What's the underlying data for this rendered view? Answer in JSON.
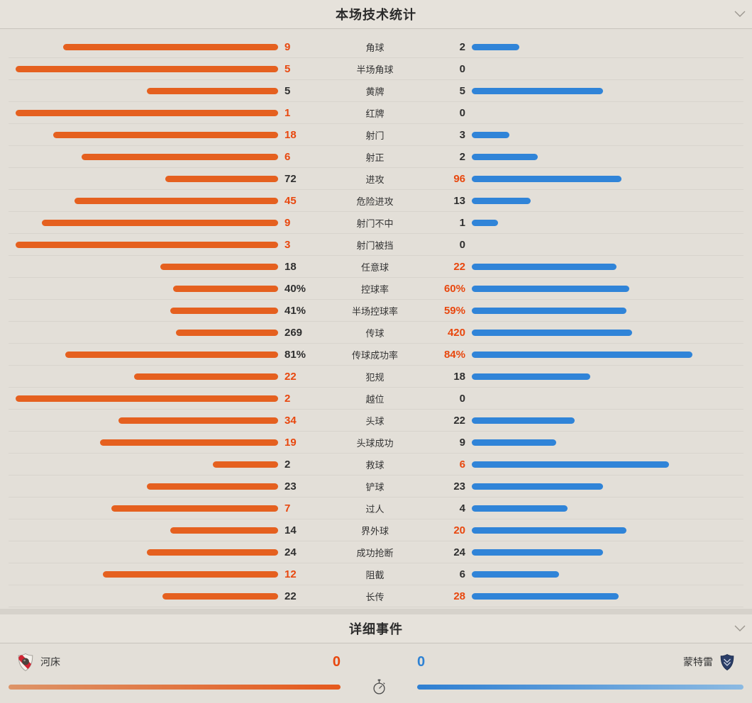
{
  "colors": {
    "orange_bar": "#e5601f",
    "orange_text": "#e8470e",
    "blue_bar": "#3084d8",
    "blue_text": "#2e82d4",
    "background": "#e3dfd8"
  },
  "icons": {
    "stats_collapse": "chevron-down",
    "events_collapse": "chevron-down",
    "match_time": "stopwatch",
    "home_badge": "river-plate-crest",
    "away_badge": "monterrey-crest"
  },
  "stats_panel": {
    "title": "本场技术统计",
    "rows": [
      {
        "label": "角球",
        "home": "9",
        "away": "2"
      },
      {
        "label": "半场角球",
        "home": "5",
        "away": "0"
      },
      {
        "label": "黄牌",
        "home": "5",
        "away": "5"
      },
      {
        "label": "红牌",
        "home": "1",
        "away": "0"
      },
      {
        "label": "射门",
        "home": "18",
        "away": "3"
      },
      {
        "label": "射正",
        "home": "6",
        "away": "2"
      },
      {
        "label": "进攻",
        "home": "72",
        "away": "96"
      },
      {
        "label": "危险进攻",
        "home": "45",
        "away": "13"
      },
      {
        "label": "射门不中",
        "home": "9",
        "away": "1"
      },
      {
        "label": "射门被挡",
        "home": "3",
        "away": "0"
      },
      {
        "label": "任意球",
        "home": "18",
        "away": "22"
      },
      {
        "label": "控球率",
        "home": "40%",
        "away": "60%"
      },
      {
        "label": "半场控球率",
        "home": "41%",
        "away": "59%"
      },
      {
        "label": "传球",
        "home": "269",
        "away": "420"
      },
      {
        "label": "传球成功率",
        "home": "81%",
        "away": "84%"
      },
      {
        "label": "犯规",
        "home": "22",
        "away": "18"
      },
      {
        "label": "越位",
        "home": "2",
        "away": "0"
      },
      {
        "label": "头球",
        "home": "34",
        "away": "22"
      },
      {
        "label": "头球成功",
        "home": "19",
        "away": "9"
      },
      {
        "label": "救球",
        "home": "2",
        "away": "6"
      },
      {
        "label": "铲球",
        "home": "23",
        "away": "23"
      },
      {
        "label": "过人",
        "home": "7",
        "away": "4"
      },
      {
        "label": "界外球",
        "home": "14",
        "away": "20"
      },
      {
        "label": "成功抢断",
        "home": "24",
        "away": "24"
      },
      {
        "label": "阻截",
        "home": "12",
        "away": "6"
      },
      {
        "label": "长传",
        "home": "22",
        "away": "28"
      }
    ]
  },
  "events_panel": {
    "title": "详细事件",
    "home_team": {
      "name": "河床",
      "score": "0"
    },
    "away_team": {
      "name": "蒙特雷",
      "score": "0"
    }
  }
}
